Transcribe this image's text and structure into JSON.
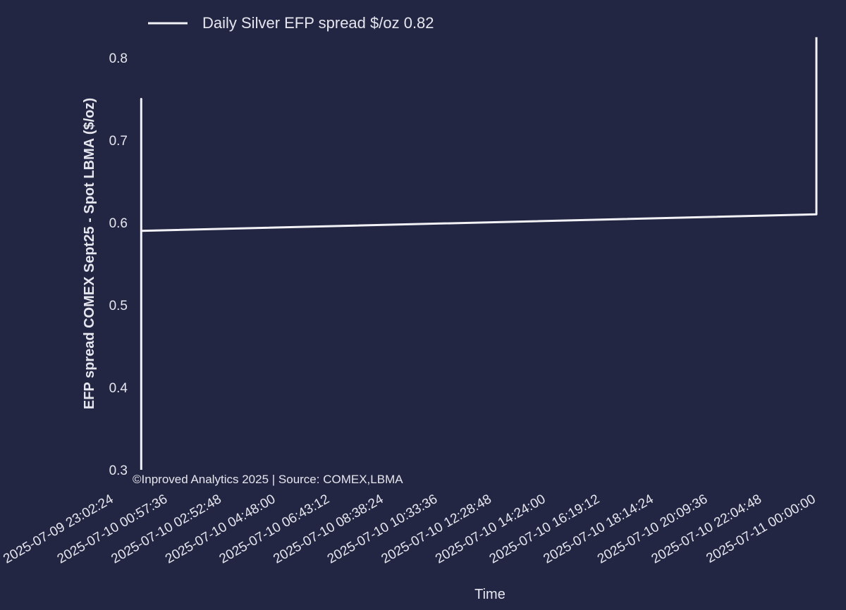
{
  "chart_data": {
    "type": "line",
    "title": "",
    "xlabel": "Time",
    "ylabel": "EFP spread COMEX Sept25 - Spot LBMA ($/oz)",
    "ylim": [
      0.3,
      0.82
    ],
    "xlim": [
      "2025-07-09 23:02:24",
      "2025-07-11 00:00:00"
    ],
    "y_ticks": [
      "0.3",
      "0.4",
      "0.5",
      "0.6",
      "0.7",
      "0.8"
    ],
    "x_ticks": [
      "2025-07-09 23:02:24",
      "2025-07-10 00:57:36",
      "2025-07-10 02:52:48",
      "2025-07-10 04:48:00",
      "2025-07-10 06:43:12",
      "2025-07-10 08:38:24",
      "2025-07-10 10:33:36",
      "2025-07-10 12:28:48",
      "2025-07-10 14:24:00",
      "2025-07-10 16:19:12",
      "2025-07-10 18:14:24",
      "2025-07-10 20:09:36",
      "2025-07-10 22:04:48",
      "2025-07-11 00:00:00"
    ],
    "series": [
      {
        "name": "Daily Silver EFP spread $/oz 0.82",
        "color": "#f2f2f7",
        "points": [
          {
            "x": "2025-07-10 00:00:00",
            "y": 0.3
          },
          {
            "x": "2025-07-10 00:00:00",
            "y": 0.36
          },
          {
            "x": "2025-07-10 00:00:00",
            "y": 0.75
          },
          {
            "x": "2025-07-10 00:00:00",
            "y": 0.59
          },
          {
            "x": "2025-07-11 00:00:00",
            "y": 0.61
          },
          {
            "x": "2025-07-11 00:00:00",
            "y": 0.825
          }
        ]
      }
    ],
    "legend_position": "top-left",
    "grid": false,
    "annotation": "©Inproved Analytics 2025 | Source: COMEX,LBMA"
  },
  "colors": {
    "background": "#232643",
    "text": "#e6e6ee",
    "line": "#f2f2f7"
  }
}
